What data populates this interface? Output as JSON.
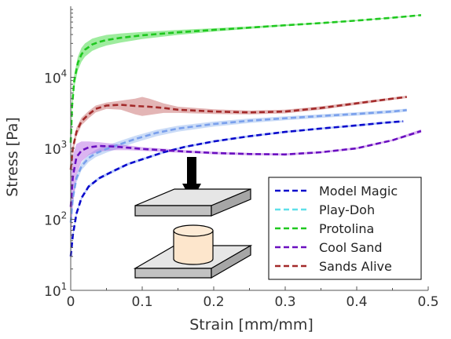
{
  "chart_data": {
    "type": "line",
    "xlabel": "Strain [mm/mm]",
    "ylabel": "Stress [Pa]",
    "xlim": [
      0,
      0.5
    ],
    "ylim": [
      10,
      100000
    ],
    "yscale": "log",
    "x_ticks": [
      {
        "value": 0,
        "label": "0"
      },
      {
        "value": 0.1,
        "label": "0.1"
      },
      {
        "value": 0.2,
        "label": "0.2"
      },
      {
        "value": 0.3,
        "label": "0.3"
      },
      {
        "value": 0.4,
        "label": "0.4"
      },
      {
        "value": 0.5,
        "label": "0.5"
      }
    ],
    "y_ticks": [
      {
        "value": 10,
        "base": "10",
        "exp": "1"
      },
      {
        "value": 100,
        "base": "10",
        "exp": "2"
      },
      {
        "value": 1000,
        "base": "10",
        "exp": "3"
      },
      {
        "value": 10000,
        "base": "10",
        "exp": "4"
      }
    ],
    "grid": false,
    "legend_position": "bottom-right",
    "series": [
      {
        "name": "Model Magic",
        "color": "#0a0acc",
        "band_color": "#3a6cf0",
        "band_opacity": 0.35,
        "x": [
          0,
          0.003,
          0.008,
          0.015,
          0.025,
          0.04,
          0.06,
          0.08,
          0.1,
          0.13,
          0.16,
          0.2,
          0.25,
          0.3,
          0.35,
          0.4,
          0.44,
          0.465
        ],
        "y": [
          30,
          60,
          120,
          200,
          290,
          380,
          480,
          600,
          700,
          880,
          1050,
          1250,
          1480,
          1700,
          1900,
          2100,
          2300,
          2400
        ],
        "lower": [
          28,
          55,
          112,
          188,
          275,
          362,
          458,
          575,
          672,
          848,
          1015,
          1210,
          1430,
          1645,
          1840,
          2030,
          2225,
          2330
        ],
        "upper": [
          32,
          65,
          128,
          212,
          305,
          398,
          502,
          625,
          728,
          912,
          1085,
          1290,
          1530,
          1755,
          1960,
          2170,
          2380,
          2470
        ]
      },
      {
        "name": "Play-Doh",
        "color": "#7aa0ec",
        "band_color": "#a8c4f2",
        "band_opacity": 0.6,
        "x": [
          0,
          0.003,
          0.008,
          0.015,
          0.025,
          0.035,
          0.05,
          0.07,
          0.09,
          0.12,
          0.15,
          0.2,
          0.25,
          0.3,
          0.35,
          0.4,
          0.45,
          0.47
        ],
        "y": [
          90,
          200,
          380,
          560,
          730,
          850,
          980,
          1150,
          1350,
          1650,
          1900,
          2200,
          2450,
          2650,
          2850,
          3050,
          3300,
          3450
        ],
        "lower": [
          80,
          175,
          330,
          490,
          640,
          750,
          870,
          1020,
          1200,
          1480,
          1720,
          2020,
          2270,
          2480,
          2680,
          2880,
          3120,
          3280
        ],
        "upper": [
          100,
          225,
          430,
          630,
          820,
          950,
          1090,
          1280,
          1500,
          1820,
          2080,
          2380,
          2630,
          2820,
          3020,
          3220,
          3480,
          3620
        ]
      },
      {
        "name": "Protolina",
        "color": "#1fc81f",
        "band_color": "#5ee05e",
        "band_opacity": 0.6,
        "x": [
          0,
          0.002,
          0.005,
          0.01,
          0.015,
          0.02,
          0.03,
          0.04,
          0.05,
          0.07,
          0.1,
          0.15,
          0.2,
          0.25,
          0.3,
          0.35,
          0.4,
          0.45,
          0.49
        ],
        "y": [
          1200,
          4000,
          9000,
          16000,
          21000,
          24500,
          29000,
          31500,
          33500,
          36000,
          39000,
          43000,
          46500,
          50000,
          54000,
          58000,
          63000,
          69000,
          75000
        ],
        "lower": [
          1000,
          3200,
          7200,
          12500,
          16500,
          19500,
          23500,
          26000,
          28000,
          30800,
          34500,
          39500,
          44000,
          48000,
          52500,
          57000,
          62000,
          68000,
          74000
        ],
        "upper": [
          1400,
          4800,
          11000,
          19500,
          26000,
          30000,
          35000,
          37500,
          39500,
          41500,
          43500,
          46500,
          49000,
          52000,
          55500,
          59000,
          64000,
          70000,
          76000
        ]
      },
      {
        "name": "Cool Sand",
        "color": "#6a0fc0",
        "band_color": "#b05ce0",
        "band_opacity": 0.45,
        "x": [
          0,
          0.003,
          0.008,
          0.015,
          0.025,
          0.04,
          0.06,
          0.08,
          0.1,
          0.13,
          0.16,
          0.2,
          0.25,
          0.3,
          0.35,
          0.4,
          0.45,
          0.49
        ],
        "y": [
          150,
          400,
          750,
          930,
          1030,
          1080,
          1060,
          1020,
          980,
          940,
          900,
          860,
          830,
          820,
          880,
          1000,
          1300,
          1750
        ],
        "lower": [
          40,
          150,
          420,
          650,
          800,
          900,
          940,
          940,
          920,
          890,
          860,
          825,
          800,
          790,
          850,
          965,
          1260,
          1650
        ],
        "upper": [
          400,
          800,
          1150,
          1250,
          1250,
          1220,
          1160,
          1100,
          1040,
          990,
          940,
          895,
          860,
          850,
          910,
          1035,
          1340,
          1850
        ]
      },
      {
        "name": "Sands Alive",
        "color": "#a32a2a",
        "band_color": "#c25a5a",
        "band_opacity": 0.45,
        "x": [
          0,
          0.003,
          0.008,
          0.015,
          0.025,
          0.035,
          0.05,
          0.07,
          0.09,
          0.1,
          0.11,
          0.13,
          0.15,
          0.2,
          0.25,
          0.3,
          0.35,
          0.4,
          0.45,
          0.47
        ],
        "y": [
          500,
          1000,
          1700,
          2400,
          3000,
          3600,
          4000,
          4100,
          3950,
          3900,
          3850,
          3700,
          3500,
          3300,
          3200,
          3300,
          3700,
          4300,
          5000,
          5300
        ],
        "lower": [
          400,
          850,
          1450,
          2100,
          2650,
          3200,
          3600,
          3500,
          3000,
          2850,
          2950,
          3150,
          3150,
          3050,
          3000,
          3100,
          3500,
          4100,
          4800,
          5100
        ],
        "upper": [
          600,
          1150,
          1950,
          2700,
          3350,
          4000,
          4400,
          4700,
          5000,
          5300,
          5000,
          4300,
          3850,
          3550,
          3400,
          3500,
          3900,
          4500,
          5200,
          5500
        ]
      }
    ]
  }
}
